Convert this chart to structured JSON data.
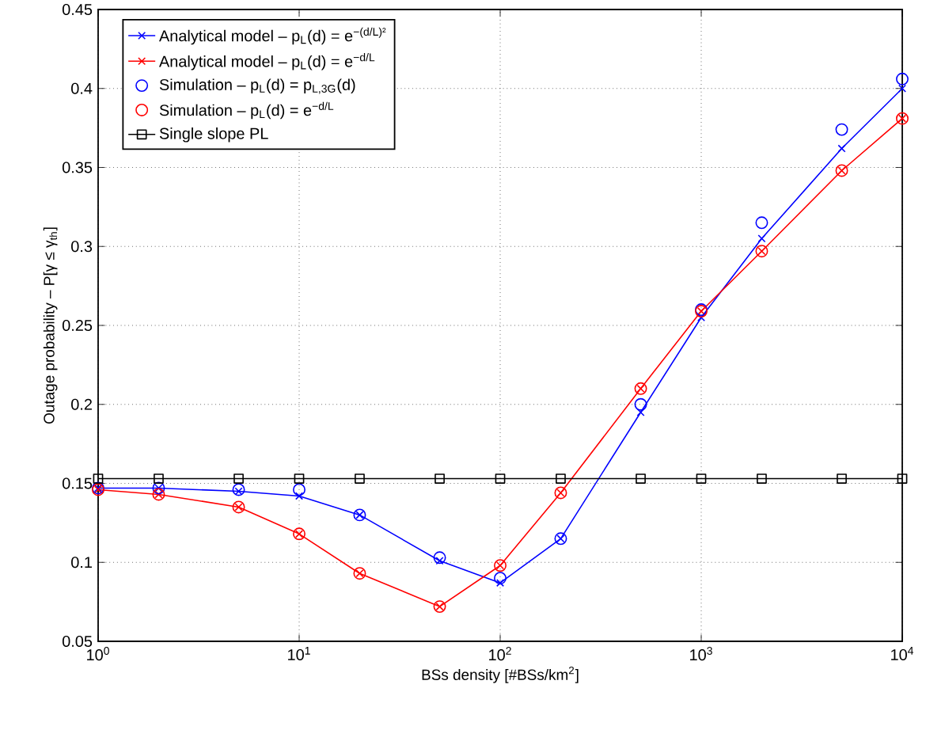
{
  "chart_data": {
    "type": "line",
    "xlabel": "BSs density [#BSs/km$^{2}$]",
    "ylabel": "Outage probability – P[γ ≤ γ$_{th}$]",
    "x": [
      1,
      2,
      5,
      10,
      20,
      50,
      100,
      200,
      500,
      1000,
      2000,
      5000,
      10000
    ],
    "series": [
      {
        "name": "Analytical model – p$_{L}$(d) = e$^{−(d/L)²}$",
        "marker": "cross",
        "color": "#0000ff",
        "values": [
          0.147,
          0.147,
          0.145,
          0.142,
          0.13,
          0.101,
          0.087,
          0.115,
          0.195,
          0.255,
          0.305,
          0.362,
          0.4
        ]
      },
      {
        "name": "Analytical model – p$_{L}$(d) = e$^{−d/L}$",
        "marker": "cross",
        "color": "#ff0000",
        "values": [
          0.146,
          0.143,
          0.135,
          0.118,
          0.093,
          0.072,
          0.098,
          0.144,
          0.21,
          0.259,
          0.297,
          0.348,
          0.381
        ]
      },
      {
        "name": "Simulation – p$_{L}$(d) = p$_{L,3G}$(d)",
        "type": "scatter",
        "marker": "circle",
        "color": "#0000ff",
        "values": [
          0.147,
          0.147,
          0.146,
          0.146,
          0.13,
          0.103,
          0.09,
          0.115,
          0.2,
          0.26,
          0.315,
          0.374,
          0.406
        ]
      },
      {
        "name": "Simulation – p$_{L}$(d) = e$^{−d/L}$",
        "type": "scatter",
        "marker": "circle",
        "color": "#ff0000",
        "values": [
          0.146,
          0.143,
          0.135,
          0.118,
          0.093,
          0.072,
          0.098,
          0.144,
          0.21,
          0.259,
          0.297,
          0.348,
          0.381
        ]
      },
      {
        "name": "Single slope PL",
        "marker": "square",
        "color": "#000000",
        "values": [
          0.153,
          0.153,
          0.153,
          0.153,
          0.153,
          0.153,
          0.153,
          0.153,
          0.153,
          0.153,
          0.153,
          0.153,
          0.153
        ]
      }
    ],
    "log": "x",
    "grid": true,
    "legend": "top left",
    "xlim": [
      1,
      10000
    ],
    "ylim": [
      0.05,
      0.45
    ],
    "xticks": [
      {
        "value": 1,
        "label": "10$^{0}$"
      },
      {
        "value": 10,
        "label": "10$^{1}$"
      },
      {
        "value": 100,
        "label": "10$^{2}$"
      },
      {
        "value": 1000,
        "label": "10$^{3}$"
      },
      {
        "value": 10000,
        "label": "10$^{4}$"
      }
    ],
    "yticks": [
      0.05,
      0.1,
      0.15,
      0.2,
      0.25,
      0.3,
      0.35,
      0.4,
      0.45
    ]
  }
}
